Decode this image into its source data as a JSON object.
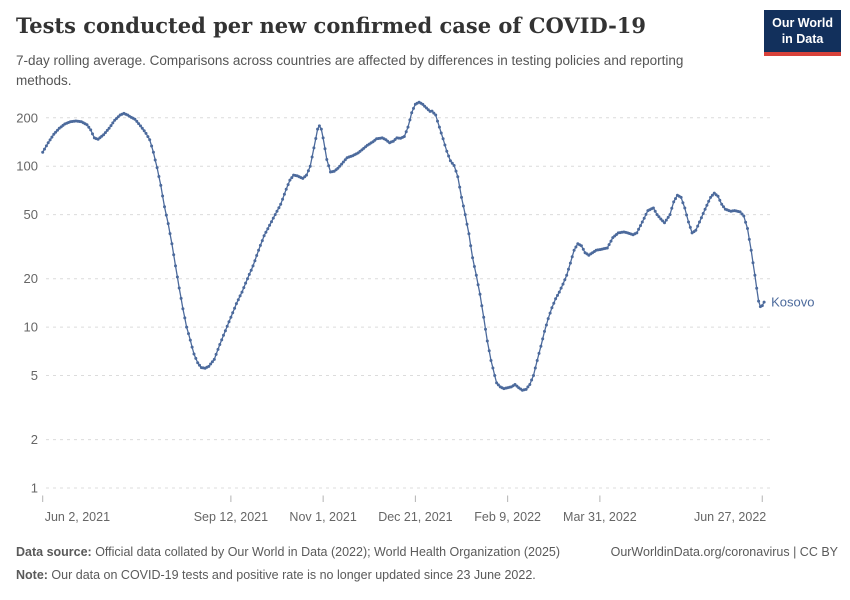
{
  "header": {
    "title": "Tests conducted per new confirmed case of COVID-19",
    "subtitle": "7-day rolling average. Comparisons across countries are affected by differences in testing policies and reporting methods.",
    "logo": {
      "line1": "Our World",
      "line2": "in Data",
      "bg_color": "#12305C",
      "bar_color": "#D8413A"
    }
  },
  "chart_data": {
    "type": "line",
    "title": "Tests conducted per new confirmed case of COVID-19",
    "entity_label": "Kosovo",
    "line_color": "#4C6A9C",
    "gridline_color": "#dcdcdc",
    "axis_text_color": "#666666",
    "log_scale_y": true,
    "ylim": [
      1,
      256
    ],
    "y_ticks": [
      1,
      2,
      5,
      10,
      20,
      50,
      100,
      200
    ],
    "x_ticks": [
      {
        "label": "Jun 2, 2021",
        "day": 0
      },
      {
        "label": "Sep 12, 2021",
        "day": 102
      },
      {
        "label": "Nov 1, 2021",
        "day": 152
      },
      {
        "label": "Dec 21, 2021",
        "day": 202
      },
      {
        "label": "Feb 9, 2022",
        "day": 252
      },
      {
        "label": "Mar 31, 2022",
        "day": 302
      },
      {
        "label": "Jun 27, 2022",
        "day": 390
      }
    ],
    "x_unit": "days since Jun 2, 2021",
    "points_day_value": [
      [
        0,
        122
      ],
      [
        3,
        140
      ],
      [
        6,
        158
      ],
      [
        9,
        172
      ],
      [
        12,
        183
      ],
      [
        15,
        189
      ],
      [
        18,
        191
      ],
      [
        21,
        189
      ],
      [
        24,
        181
      ],
      [
        26,
        168
      ],
      [
        28,
        150
      ],
      [
        30,
        147
      ],
      [
        33,
        157
      ],
      [
        36,
        172
      ],
      [
        39,
        193
      ],
      [
        42,
        208
      ],
      [
        44,
        213
      ],
      [
        46,
        208
      ],
      [
        48,
        201
      ],
      [
        50,
        196
      ],
      [
        52,
        184
      ],
      [
        54,
        172
      ],
      [
        56,
        160
      ],
      [
        58,
        146
      ],
      [
        60,
        122
      ],
      [
        62,
        98
      ],
      [
        64,
        76
      ],
      [
        66,
        56
      ],
      [
        68,
        44
      ],
      [
        70,
        33
      ],
      [
        72,
        24
      ],
      [
        74,
        17.5
      ],
      [
        76,
        13
      ],
      [
        78,
        10
      ],
      [
        80,
        8.3
      ],
      [
        82,
        6.8
      ],
      [
        84,
        6
      ],
      [
        86,
        5.6
      ],
      [
        88,
        5.55
      ],
      [
        90,
        5.7
      ],
      [
        93,
        6.3
      ],
      [
        96,
        7.8
      ],
      [
        99,
        9.5
      ],
      [
        102,
        11.5
      ],
      [
        105,
        14
      ],
      [
        108,
        16.5
      ],
      [
        111,
        20
      ],
      [
        114,
        24
      ],
      [
        117,
        30
      ],
      [
        120,
        37
      ],
      [
        123,
        43
      ],
      [
        126,
        50
      ],
      [
        129,
        58
      ],
      [
        132,
        72
      ],
      [
        134,
        82
      ],
      [
        136,
        88
      ],
      [
        138,
        87
      ],
      [
        140,
        85
      ],
      [
        141,
        84
      ],
      [
        143,
        88
      ],
      [
        145,
        100
      ],
      [
        147,
        130
      ],
      [
        149,
        170
      ],
      [
        150,
        178
      ],
      [
        151,
        170
      ],
      [
        152,
        150
      ],
      [
        154,
        110
      ],
      [
        156,
        92
      ],
      [
        158,
        93
      ],
      [
        160,
        97
      ],
      [
        162,
        103
      ],
      [
        165,
        113
      ],
      [
        168,
        116
      ],
      [
        171,
        121
      ],
      [
        174,
        129
      ],
      [
        176,
        135
      ],
      [
        179,
        142
      ],
      [
        181,
        148
      ],
      [
        184,
        150
      ],
      [
        186,
        146
      ],
      [
        188,
        140
      ],
      [
        190,
        143
      ],
      [
        192,
        150
      ],
      [
        194,
        149
      ],
      [
        196,
        153
      ],
      [
        198,
        175
      ],
      [
        200,
        215
      ],
      [
        202,
        243
      ],
      [
        204,
        250
      ],
      [
        206,
        242
      ],
      [
        208,
        230
      ],
      [
        210,
        219
      ],
      [
        211,
        220
      ],
      [
        213,
        208
      ],
      [
        215,
        175
      ],
      [
        217,
        148
      ],
      [
        219,
        124
      ],
      [
        221,
        108
      ],
      [
        223,
        101
      ],
      [
        225,
        86
      ],
      [
        227,
        64
      ],
      [
        229,
        50
      ],
      [
        231,
        38
      ],
      [
        233,
        27
      ],
      [
        235,
        21
      ],
      [
        237,
        16
      ],
      [
        239,
        11.5
      ],
      [
        241,
        8.2
      ],
      [
        243,
        6.2
      ],
      [
        245,
        5
      ],
      [
        246,
        4.5
      ],
      [
        248,
        4.25
      ],
      [
        250,
        4.15
      ],
      [
        252,
        4.2
      ],
      [
        254,
        4.25
      ],
      [
        256,
        4.4
      ],
      [
        258,
        4.2
      ],
      [
        260,
        4.05
      ],
      [
        262,
        4.1
      ],
      [
        264,
        4.4
      ],
      [
        266,
        5
      ],
      [
        268,
        6.2
      ],
      [
        270,
        7.6
      ],
      [
        272,
        9.4
      ],
      [
        274,
        11.3
      ],
      [
        276,
        13.2
      ],
      [
        278,
        15
      ],
      [
        280,
        16.5
      ],
      [
        282,
        18.5
      ],
      [
        284,
        21
      ],
      [
        286,
        25
      ],
      [
        288,
        30
      ],
      [
        290,
        33
      ],
      [
        292,
        32
      ],
      [
        294,
        29
      ],
      [
        296,
        28
      ],
      [
        298,
        29
      ],
      [
        300,
        30
      ],
      [
        303,
        30.5
      ],
      [
        306,
        31
      ],
      [
        309,
        36
      ],
      [
        312,
        38.5
      ],
      [
        315,
        39
      ],
      [
        317,
        38.5
      ],
      [
        320,
        37.5
      ],
      [
        322,
        38.5
      ],
      [
        325,
        45
      ],
      [
        328,
        53
      ],
      [
        331,
        55
      ],
      [
        333,
        50
      ],
      [
        335,
        47
      ],
      [
        337,
        44.5
      ],
      [
        340,
        50
      ],
      [
        342,
        60
      ],
      [
        344,
        66
      ],
      [
        346,
        64
      ],
      [
        348,
        55
      ],
      [
        350,
        45
      ],
      [
        352,
        38.5
      ],
      [
        354,
        40
      ],
      [
        356,
        45
      ],
      [
        359,
        54
      ],
      [
        362,
        64
      ],
      [
        364,
        68
      ],
      [
        366,
        65
      ],
      [
        368,
        58
      ],
      [
        370,
        54
      ],
      [
        373,
        52.5
      ],
      [
        375,
        53
      ],
      [
        378,
        52
      ],
      [
        380,
        49
      ],
      [
        382,
        41
      ],
      [
        384,
        30
      ],
      [
        386,
        21
      ],
      [
        388,
        14.5
      ],
      [
        389,
        13.4
      ],
      [
        390,
        13.6
      ],
      [
        391,
        14.3
      ]
    ]
  },
  "footer": {
    "data_source_label": "Data source:",
    "data_source_text": " Official data collated by Our World in Data (2022); World Health Organization (2025)",
    "link_text": "OurWorldinData.org/coronavirus | CC BY",
    "note_label": "Note:",
    "note_text": " Our data on COVID-19 tests and positive rate is no longer updated since 23 June 2022."
  }
}
